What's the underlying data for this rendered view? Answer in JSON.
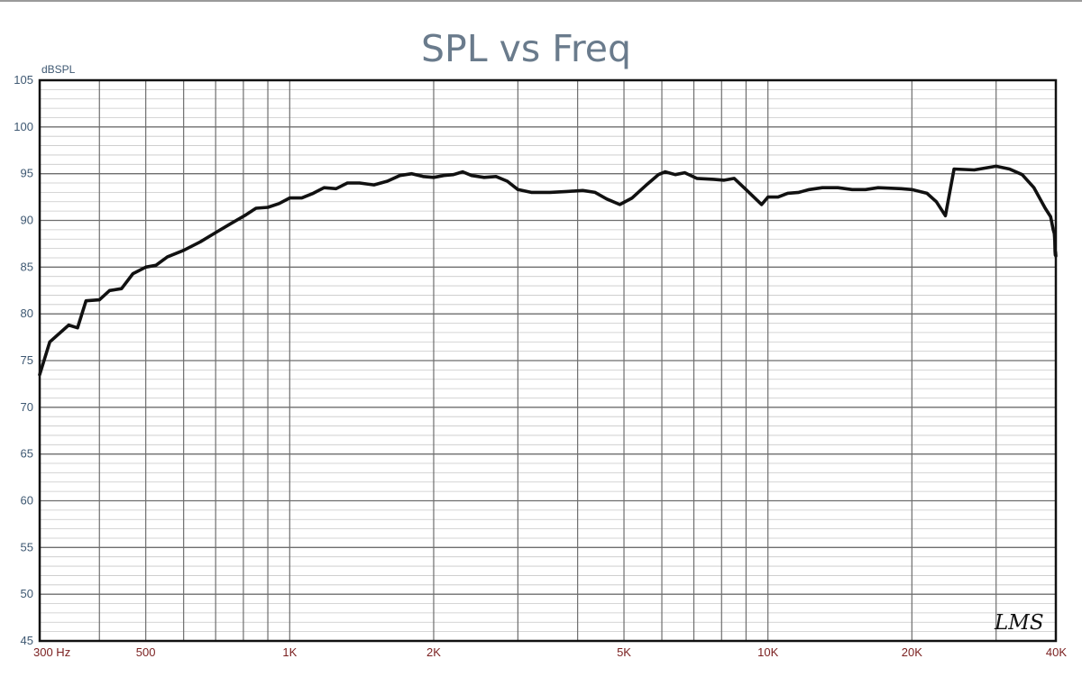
{
  "chart_data": {
    "type": "line",
    "title": "SPL vs Freq",
    "ylabel": "dBSPL",
    "xlabel": "",
    "x_scale": "log",
    "xlim": [
      300,
      40000
    ],
    "ylim": [
      45,
      105
    ],
    "grid": true,
    "yticks": [
      105,
      100,
      95,
      90,
      85,
      80,
      75,
      70,
      65,
      60,
      55,
      50,
      45
    ],
    "xtick_labels": [
      {
        "value": 300,
        "label": "300  Hz"
      },
      {
        "value": 500,
        "label": "500"
      },
      {
        "value": 1000,
        "label": "1K"
      },
      {
        "value": 2000,
        "label": "2K"
      },
      {
        "value": 5000,
        "label": "5K"
      },
      {
        "value": 10000,
        "label": "10K"
      },
      {
        "value": 20000,
        "label": "20K"
      },
      {
        "value": 40000,
        "label": "40K"
      }
    ],
    "series": [
      {
        "color": "#111111",
        "points": [
          [
            300,
            73.5
          ],
          [
            315,
            77.0
          ],
          [
            345,
            78.8
          ],
          [
            360,
            78.5
          ],
          [
            375,
            81.4
          ],
          [
            400,
            81.5
          ],
          [
            420,
            82.5
          ],
          [
            445,
            82.7
          ],
          [
            470,
            84.3
          ],
          [
            500,
            85.0
          ],
          [
            525,
            85.2
          ],
          [
            555,
            86.1
          ],
          [
            600,
            86.8
          ],
          [
            650,
            87.7
          ],
          [
            700,
            88.7
          ],
          [
            750,
            89.6
          ],
          [
            810,
            90.6
          ],
          [
            850,
            91.3
          ],
          [
            900,
            91.4
          ],
          [
            950,
            91.8
          ],
          [
            1000,
            92.4
          ],
          [
            1060,
            92.4
          ],
          [
            1120,
            92.9
          ],
          [
            1180,
            93.5
          ],
          [
            1250,
            93.4
          ],
          [
            1320,
            94.0
          ],
          [
            1400,
            94.0
          ],
          [
            1500,
            93.8
          ],
          [
            1600,
            94.2
          ],
          [
            1700,
            94.8
          ],
          [
            1800,
            95.0
          ],
          [
            1900,
            94.7
          ],
          [
            2000,
            94.6
          ],
          [
            2100,
            94.8
          ],
          [
            2200,
            94.9
          ],
          [
            2300,
            95.2
          ],
          [
            2400,
            94.8
          ],
          [
            2550,
            94.6
          ],
          [
            2700,
            94.7
          ],
          [
            2850,
            94.2
          ],
          [
            3000,
            93.3
          ],
          [
            3200,
            93.0
          ],
          [
            3500,
            93.0
          ],
          [
            3800,
            93.1
          ],
          [
            4100,
            93.2
          ],
          [
            4350,
            93.0
          ],
          [
            4600,
            92.3
          ],
          [
            4900,
            91.7
          ],
          [
            5200,
            92.4
          ],
          [
            5600,
            93.9
          ],
          [
            5900,
            94.9
          ],
          [
            6100,
            95.2
          ],
          [
            6400,
            94.9
          ],
          [
            6700,
            95.1
          ],
          [
            7100,
            94.5
          ],
          [
            7700,
            94.4
          ],
          [
            8100,
            94.3
          ],
          [
            8500,
            94.5
          ],
          [
            9000,
            93.3
          ],
          [
            9700,
            91.7
          ],
          [
            10000,
            92.5
          ],
          [
            10500,
            92.5
          ],
          [
            11000,
            92.9
          ],
          [
            11600,
            93.0
          ],
          [
            12200,
            93.3
          ],
          [
            13000,
            93.5
          ],
          [
            14000,
            93.5
          ],
          [
            15000,
            93.3
          ],
          [
            16000,
            93.3
          ],
          [
            17000,
            93.5
          ],
          [
            19000,
            93.4
          ],
          [
            20000,
            93.3
          ],
          [
            21500,
            92.9
          ],
          [
            22500,
            92.0
          ],
          [
            23500,
            90.5
          ],
          [
            24500,
            95.5
          ],
          [
            27000,
            95.4
          ],
          [
            30000,
            95.8
          ],
          [
            32000,
            95.5
          ],
          [
            34000,
            94.9
          ],
          [
            36000,
            93.5
          ],
          [
            38000,
            91.3
          ],
          [
            39000,
            90.4
          ],
          [
            39500,
            89.0
          ],
          [
            39700,
            88.6
          ],
          [
            39800,
            87.9
          ],
          [
            39850,
            86.7
          ],
          [
            39900,
            86.3
          ],
          [
            39950,
            86.6
          ],
          [
            40000,
            86.2
          ]
        ]
      }
    ]
  },
  "watermark": "LMS"
}
